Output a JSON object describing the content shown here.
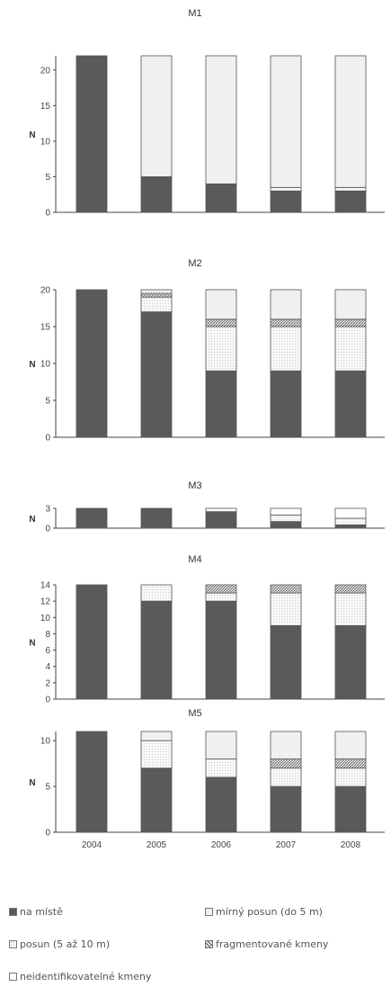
{
  "colors": {
    "na_miste": "#5a5a5a",
    "mirny_posun": "#f0f0f0",
    "posun": "#f4f4f4",
    "fragmentovane": "#9a9a9a",
    "neidentifikovatelne": "#ffffff"
  },
  "legend": [
    {
      "key": "na_miste",
      "label": "na místě"
    },
    {
      "key": "mirny_posun",
      "label": "mírný posun (do 5 m)"
    },
    {
      "key": "posun",
      "label": "posun (5 až 10 m)"
    },
    {
      "key": "fragmentovane",
      "label": "fragmentované kmeny"
    },
    {
      "key": "neidentifikovatelne",
      "label": "neidentifikovatelné kmeny"
    }
  ],
  "chart_data": [
    {
      "type": "bar",
      "stacked": true,
      "title": "M1",
      "ylabel": "N",
      "ylim": [
        0,
        22
      ],
      "yticks": [
        0,
        5,
        10,
        15,
        20
      ],
      "categories": [
        "2004",
        "2005",
        "2006",
        "2007",
        "2008"
      ],
      "series": [
        {
          "key": "na_miste",
          "values": [
            22,
            5,
            4,
            3,
            3
          ]
        },
        {
          "key": "posun",
          "values": [
            0,
            0,
            0,
            0.5,
            0.5
          ]
        },
        {
          "key": "mirny_posun",
          "values": [
            0,
            17,
            18,
            18.5,
            18.5
          ]
        }
      ]
    },
    {
      "type": "bar",
      "stacked": true,
      "title": "M2",
      "ylabel": "N",
      "ylim": [
        0,
        20
      ],
      "yticks": [
        0,
        5,
        10,
        15,
        20
      ],
      "categories": [
        "2004",
        "2005",
        "2006",
        "2007",
        "2008"
      ],
      "series": [
        {
          "key": "na_miste",
          "values": [
            20,
            17,
            9,
            9,
            9
          ]
        },
        {
          "key": "posun",
          "values": [
            0,
            2,
            6,
            6,
            6
          ]
        },
        {
          "key": "fragmentovane",
          "values": [
            0,
            0.5,
            1,
            1,
            1
          ]
        },
        {
          "key": "mirny_posun",
          "values": [
            0,
            0.5,
            4,
            4,
            4
          ]
        }
      ]
    },
    {
      "type": "bar",
      "stacked": true,
      "title": "M3",
      "ylabel": "N",
      "ylim": [
        0,
        3
      ],
      "yticks": [
        0,
        3
      ],
      "categories": [
        "2004",
        "2005",
        "2006",
        "2007",
        "2008"
      ],
      "series": [
        {
          "key": "na_miste",
          "values": [
            3,
            3,
            2.5,
            1,
            0.5
          ]
        },
        {
          "key": "posun",
          "values": [
            0,
            0,
            0,
            1,
            1
          ]
        },
        {
          "key": "neidentifikovatelne",
          "values": [
            0,
            0,
            0.5,
            1,
            1.5
          ]
        }
      ]
    },
    {
      "type": "bar",
      "stacked": true,
      "title": "M4",
      "ylabel": "N",
      "ylim": [
        0,
        14
      ],
      "yticks": [
        0,
        2,
        4,
        6,
        8,
        10,
        12,
        14
      ],
      "categories": [
        "2004",
        "2005",
        "2006",
        "2007",
        "2008"
      ],
      "series": [
        {
          "key": "na_miste",
          "values": [
            14,
            12,
            12,
            9,
            9
          ]
        },
        {
          "key": "posun",
          "values": [
            0,
            2,
            1,
            4,
            4
          ]
        },
        {
          "key": "fragmentovane",
          "values": [
            0,
            0,
            1,
            1,
            1
          ]
        }
      ]
    },
    {
      "type": "bar",
      "stacked": true,
      "title": "M5",
      "ylabel": "N",
      "ylim": [
        0,
        11
      ],
      "yticks": [
        0,
        5,
        10
      ],
      "categories": [
        "2004",
        "2005",
        "2006",
        "2007",
        "2008"
      ],
      "show_xticks": true,
      "series": [
        {
          "key": "na_miste",
          "values": [
            11,
            7,
            6,
            5,
            5
          ]
        },
        {
          "key": "posun",
          "values": [
            0,
            3,
            2,
            2,
            2
          ]
        },
        {
          "key": "fragmentovane",
          "values": [
            0,
            0,
            0,
            1,
            1
          ]
        },
        {
          "key": "mirny_posun",
          "values": [
            0,
            1,
            3,
            3,
            3
          ]
        }
      ]
    }
  ]
}
